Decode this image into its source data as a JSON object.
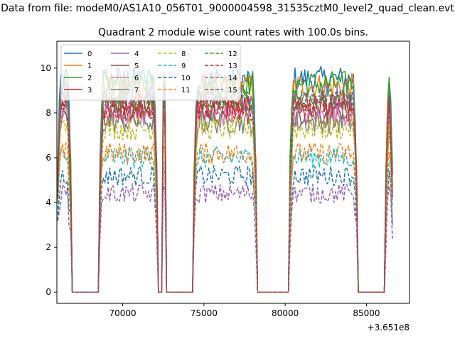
{
  "chart_data": {
    "type": "line",
    "suptitle": "Data from file: modeM0/AS1A10_056T01_9000004598_31535cztM0_level2_quad_clean.evt",
    "title": "Quadrant 2 module wise count rates with 100.0s bins.",
    "xlabel": "",
    "ylabel": "",
    "x_offset_label": "+3.651e8",
    "xlim": [
      65950,
      87650
    ],
    "ylim": [
      -0.5,
      11.2
    ],
    "x_ticks": [
      70000,
      75000,
      80000,
      85000
    ],
    "x_tick_labels": [
      "70000",
      "75000",
      "80000",
      "85000"
    ],
    "y_ticks": [
      0,
      2,
      4,
      6,
      8,
      10
    ],
    "y_tick_labels": [
      "0",
      "2",
      "4",
      "6",
      "8",
      "10"
    ],
    "active_intervals": [
      [
        66000,
        66800
      ],
      [
        68600,
        72100
      ],
      [
        72500,
        72600
      ],
      [
        74400,
        78200
      ],
      [
        80300,
        84400
      ],
      [
        86200,
        86600
      ]
    ],
    "series": [
      {
        "name": "0",
        "color": "#1f77b4",
        "dash": "solid",
        "level": 9.5
      },
      {
        "name": "1",
        "color": "#ff7f0e",
        "dash": "solid",
        "level": 9.2
      },
      {
        "name": "2",
        "color": "#2ca02c",
        "dash": "solid",
        "level": 9.3
      },
      {
        "name": "3",
        "color": "#d62728",
        "dash": "solid",
        "level": 8.3
      },
      {
        "name": "4",
        "color": "#9467bd",
        "dash": "solid",
        "level": 8.7
      },
      {
        "name": "5",
        "color": "#8c564b",
        "dash": "solid",
        "level": 8.0
      },
      {
        "name": "6",
        "color": "#e377c2",
        "dash": "solid",
        "level": 7.9
      },
      {
        "name": "7",
        "color": "#7f7f7f",
        "dash": "solid",
        "level": 7.6
      },
      {
        "name": "8",
        "color": "#bcbd22",
        "dash": "dashed",
        "level": 7.3
      },
      {
        "name": "9",
        "color": "#17becf",
        "dash": "dashed",
        "level": 6.0
      },
      {
        "name": "10",
        "color": "#1f77b4",
        "dash": "dashed",
        "level": 5.2
      },
      {
        "name": "11",
        "color": "#ff7f0e",
        "dash": "dashed",
        "level": 6.2
      },
      {
        "name": "12",
        "color": "#2ca02c",
        "dash": "dashed",
        "level": 8.6
      },
      {
        "name": "13",
        "color": "#d62728",
        "dash": "dashed",
        "level": 8.2
      },
      {
        "name": "14",
        "color": "#9467bd",
        "dash": "dashed",
        "level": 4.4
      },
      {
        "name": "15",
        "color": "#8c564b",
        "dash": "dashed",
        "level": 8.4
      }
    ]
  }
}
